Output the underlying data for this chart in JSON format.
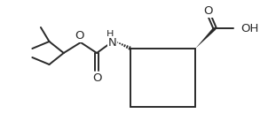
{
  "bg_color": "#ffffff",
  "line_color": "#2a2a2a",
  "line_width": 1.4,
  "font_size": 8.5,
  "figsize": [
    2.93,
    1.37
  ],
  "dpi": 100,
  "xlim": [
    0,
    293
  ],
  "ylim": [
    0,
    137
  ]
}
